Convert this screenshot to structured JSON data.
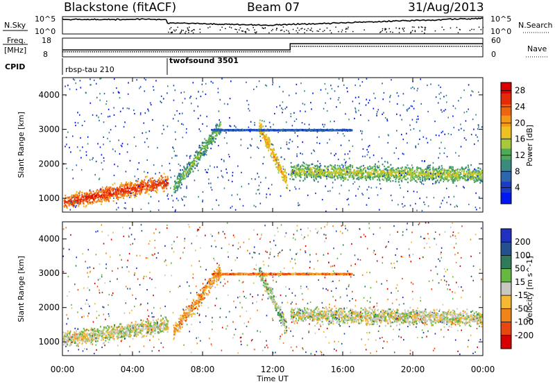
{
  "header": {
    "station": "Blackstone (fitACF)",
    "beam": "Beam 07",
    "date": "31/Aug/2013"
  },
  "panels": {
    "nsky_label": "N.Sky",
    "nsearch_label": "N.Search",
    "freq_label_1": "Freq.",
    "freq_label_2": "[MHz]",
    "nave_label": "Nave",
    "cpid_label": "CPID",
    "nsky_ticks": [
      "10^5",
      "10^0"
    ],
    "nsearch_ticks": [
      "10^5",
      "10^0"
    ],
    "freq_ticks": [
      "18",
      "8"
    ],
    "nave_ticks": [
      "60",
      "0"
    ],
    "cpid_modes": [
      "rbsp-tau 210",
      "twofsound 3501"
    ]
  },
  "chart_data": [
    {
      "type": "heatmap",
      "name": "power",
      "xlabel": "Time UT",
      "ylabel": "Slant Range [km]",
      "xlim": [
        0,
        24
      ],
      "ylim": [
        600,
        4500
      ],
      "xticks": [
        "00:00",
        "04:00",
        "08:00",
        "12:00",
        "16:00",
        "20:00",
        "00:00"
      ],
      "xtick_hours": [
        0,
        4,
        8,
        12,
        16,
        20,
        24
      ],
      "yticks": [
        1000,
        2000,
        3000,
        4000
      ],
      "colorbar": {
        "label": "Power [dB]",
        "ticks": [
          "4",
          "8",
          "12",
          "16",
          "20",
          "24",
          "28"
        ],
        "range": [
          0,
          30
        ],
        "colors": [
          "#0018f0",
          "#1c3cc8",
          "#2d66aa",
          "#3b8a7e",
          "#4eaa56",
          "#a8c83a",
          "#f0c020",
          "#f29a18",
          "#ee6410",
          "#e52a0a",
          "#d80000"
        ]
      },
      "features": [
        {
          "desc": "main band 00-06",
          "t": [
            0,
            6
          ],
          "range_start_km": [
            900,
            1500
          ],
          "power_db": 26
        },
        {
          "desc": "morning rise",
          "t": [
            6.3,
            9
          ],
          "range_start_km": [
            1300,
            3100
          ],
          "power_db": 14
        },
        {
          "desc": "noon arc",
          "t": [
            11.2,
            12.8
          ],
          "range_start_km": [
            3100,
            1500
          ],
          "power_db": 20
        },
        {
          "desc": "afternoon band",
          "t": [
            13,
            24
          ],
          "range_start_km": [
            1800,
            1700
          ],
          "power_db": 16
        },
        {
          "desc": "3000 km line",
          "t": [
            8.5,
            16.5
          ],
          "range_start_km": [
            3000,
            3000
          ],
          "power_db": 6
        }
      ]
    },
    {
      "type": "heatmap",
      "name": "velocity",
      "xlabel": "Time UT",
      "ylabel": "Slant Range [km]",
      "xlim": [
        0,
        24
      ],
      "ylim": [
        600,
        4500
      ],
      "xticks": [
        "00:00",
        "04:00",
        "08:00",
        "12:00",
        "16:00",
        "20:00",
        "00:00"
      ],
      "xtick_hours": [
        0,
        4,
        8,
        12,
        16,
        20,
        24
      ],
      "yticks": [
        1000,
        2000,
        3000,
        4000
      ],
      "colorbar": {
        "label": "Velocity [m s^-1]",
        "ticks": [
          "200",
          "100",
          "50",
          "15",
          "-15",
          "-50",
          "-100",
          "-200"
        ],
        "range": [
          -250,
          250
        ],
        "colors": [
          "#2030c0",
          "#245090",
          "#2f7a58",
          "#66b840",
          "#c8c8c0",
          "#f5b830",
          "#f08418",
          "#e84810",
          "#d80000"
        ]
      },
      "features": [
        {
          "desc": "ground scatter 00-06",
          "t": [
            0,
            6
          ],
          "range_start_km": [
            1100,
            1500
          ],
          "velocity_ms": 0
        },
        {
          "desc": "morning rise",
          "t": [
            6.3,
            9
          ],
          "range_start_km": [
            1300,
            3100
          ],
          "velocity_ms": -80
        },
        {
          "desc": "noon arc",
          "t": [
            11.2,
            12.8
          ],
          "range_start_km": [
            3100,
            1400
          ],
          "velocity_ms": 40
        },
        {
          "desc": "afternoon band",
          "t": [
            13,
            24
          ],
          "range_start_km": [
            1800,
            1700
          ],
          "velocity_ms": 0
        },
        {
          "desc": "3000 km line",
          "t": [
            8.5,
            16.5
          ],
          "range_start_km": [
            3000,
            3000
          ],
          "velocity_ms": -120
        }
      ]
    }
  ]
}
